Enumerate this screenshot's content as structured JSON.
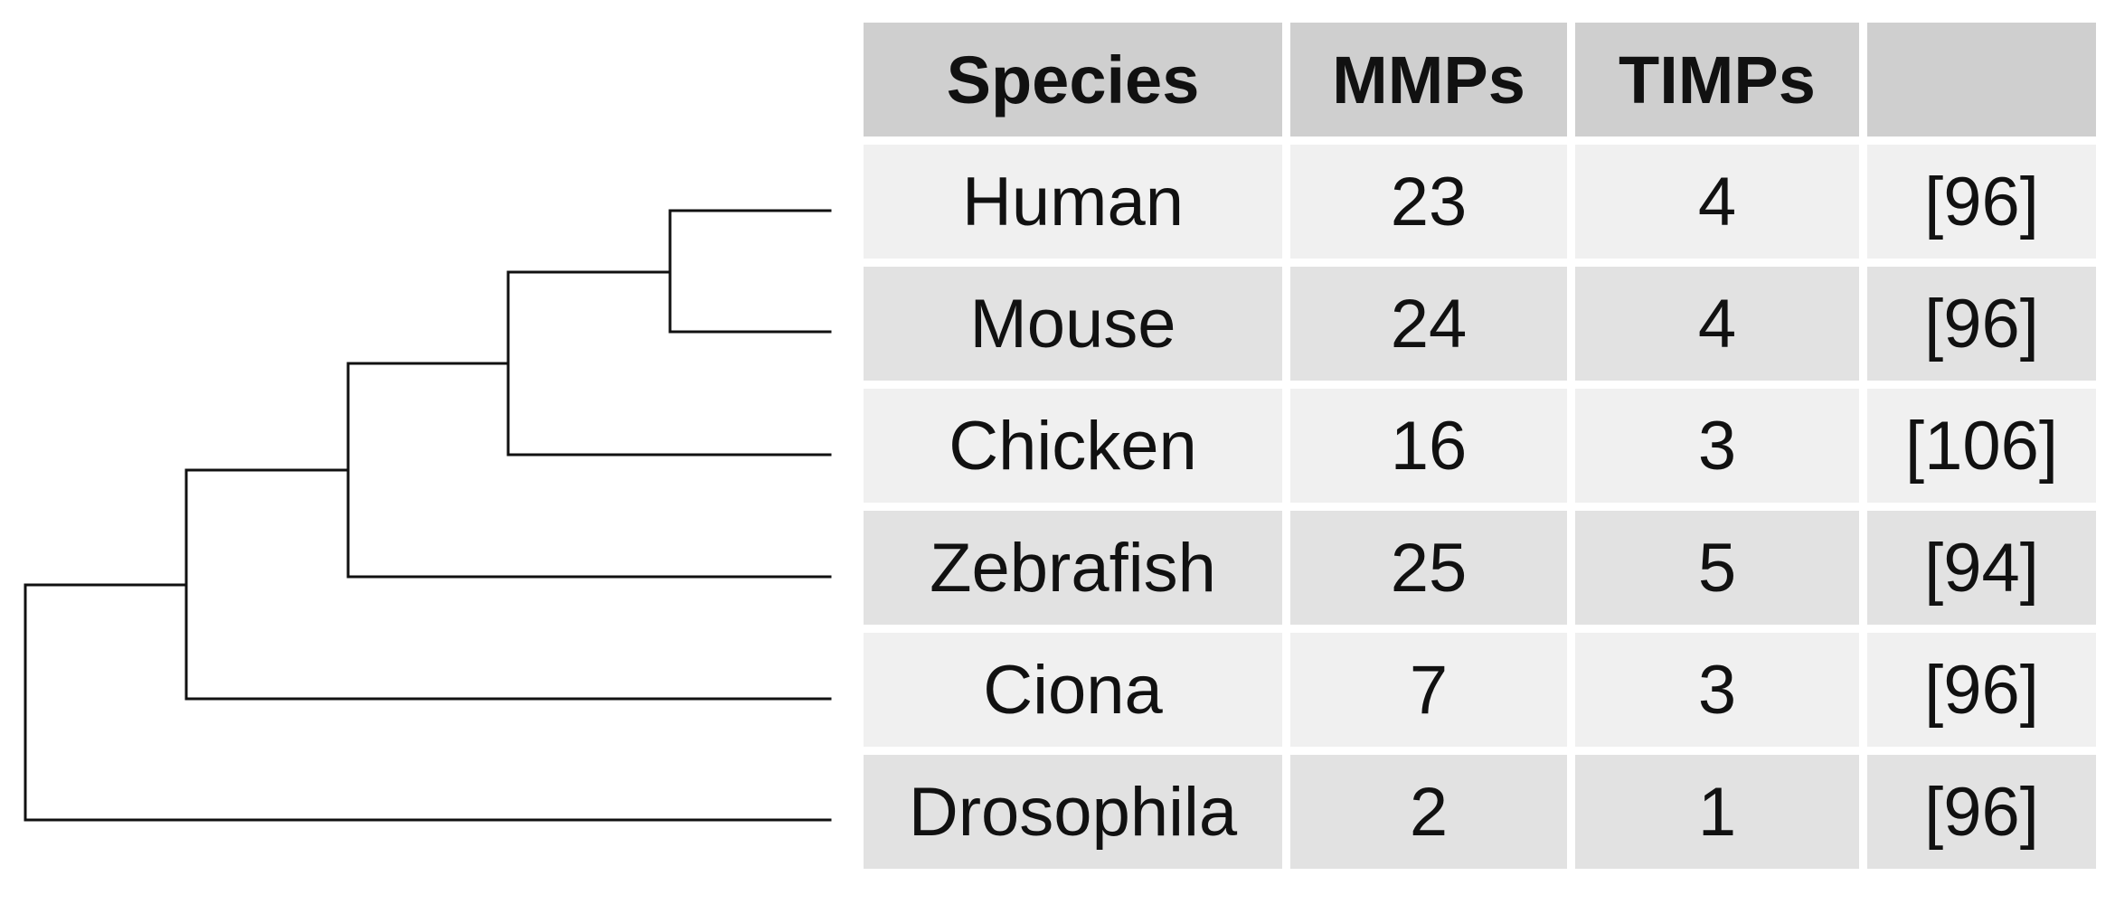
{
  "table": {
    "headers": [
      "Species",
      "MMPs",
      "TIMPs",
      ""
    ],
    "rows": [
      {
        "species": "Human",
        "mmps": "23",
        "timps": "4",
        "ref": "[96]"
      },
      {
        "species": "Mouse",
        "mmps": "24",
        "timps": "4",
        "ref": "[96]"
      },
      {
        "species": "Chicken",
        "mmps": "16",
        "timps": "3",
        "ref": "[106]"
      },
      {
        "species": "Zebrafish",
        "mmps": "25",
        "timps": "5",
        "ref": "[94]"
      },
      {
        "species": "Ciona",
        "mmps": "7",
        "timps": "3",
        "ref": "[96]"
      },
      {
        "species": "Drosophila",
        "mmps": "2",
        "timps": "1",
        "ref": "[96]"
      }
    ]
  },
  "tree": {
    "line_color": "#111111",
    "newick": "(((((Human,Mouse),Chicken),Zebrafish),Ciona),Drosophila)"
  }
}
